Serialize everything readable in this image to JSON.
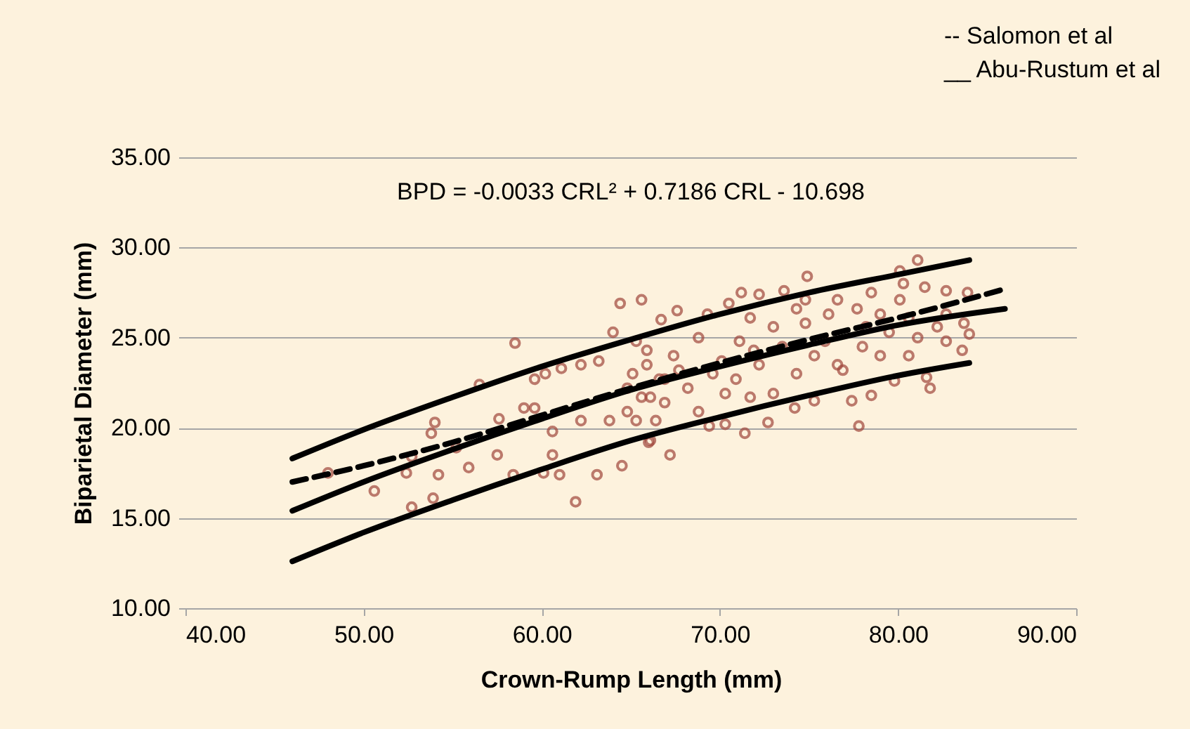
{
  "chart_data": {
    "type": "scatter",
    "xlabel": "Crown-Rump Length (mm)",
    "ylabel": "Biparietal Diameter (mm)",
    "annotations": [
      "BPD = -0.0033 CRL² + 0.7186 CRL - 10.698",
      "--   Salomon et al",
      "__ Abu-Rustum et al"
    ],
    "xlim": [
      40,
      90
    ],
    "xticks": [
      {
        "value": 40,
        "label": "40.00"
      },
      {
        "value": 50,
        "label": "50.00"
      },
      {
        "value": 60,
        "label": "60.00"
      },
      {
        "value": 70,
        "label": "70.00"
      },
      {
        "value": 80,
        "label": "80.00"
      },
      {
        "value": 90,
        "label": "90.00"
      }
    ],
    "ylim": [
      10,
      35
    ],
    "yticks": [
      {
        "value": 10,
        "label": "10.00"
      },
      {
        "value": 15,
        "label": "15.00"
      },
      {
        "value": 20,
        "label": "20.00"
      },
      {
        "value": 25,
        "label": "25.00"
      },
      {
        "value": 30,
        "label": "30.00"
      },
      {
        "value": 35,
        "label": "35.00"
      }
    ],
    "grid": "y",
    "series": [
      {
        "marker": "circle",
        "color": "#a0463c",
        "x": [
          50.6,
          52.7,
          53.9,
          52.4,
          54.2,
          55.9,
          54.0,
          53.8,
          52.7,
          58.5,
          56.5,
          55.2,
          57.5,
          57.6,
          59.0,
          59.6,
          59.6,
          60.2,
          58.4,
          60.1,
          61.0,
          61.9,
          63.1,
          64.5,
          64.4,
          65.6,
          61.1,
          62.2,
          63.2,
          64.0,
          60.6,
          62.2,
          63.8,
          65.3,
          66.1,
          67.2,
          60.6,
          64.8,
          66.1,
          66.9,
          65.9,
          65.3,
          66.7,
          74.9,
          81.1,
          80.1,
          77.8,
          81.8,
          83.6,
          84.0,
          83.9,
          82.7,
          81.5,
          80.3,
          78.5,
          76.6,
          74.8,
          73.6,
          72.2,
          71.2,
          67.6,
          69.3,
          70.5,
          66.0,
          69.4,
          70.3,
          71.4,
          72.7,
          74.2,
          75.3,
          77.4,
          78.5,
          79.8,
          80.6,
          81.6,
          82.7,
          82.2,
          79.5,
          78.0,
          76.6,
          75.3,
          73.5,
          72.2,
          70.9,
          69.6,
          68.2,
          66.9,
          65.6,
          64.8,
          67.4,
          68.8,
          71.1,
          73.0,
          74.8,
          76.1,
          77.7,
          79.0,
          80.6,
          82.7,
          83.7,
          81.1,
          79.0,
          76.9,
          74.3,
          73.0,
          71.7,
          70.3,
          68.8,
          66.4,
          67.7,
          70.1,
          71.9,
          75.9,
          80.1,
          78.2,
          74.3,
          71.7,
          65.9,
          65.1,
          66.6,
          48.0
        ],
        "values": [
          16.5,
          15.6,
          16.1,
          17.5,
          17.4,
          17.8,
          20.3,
          19.7,
          18.4,
          24.7,
          22.4,
          18.9,
          18.5,
          20.5,
          21.1,
          21.1,
          22.7,
          23.0,
          17.4,
          17.5,
          17.4,
          15.9,
          17.4,
          17.9,
          26.9,
          27.1,
          23.3,
          23.5,
          23.7,
          25.3,
          19.8,
          20.4,
          20.4,
          20.4,
          19.3,
          18.5,
          18.5,
          22.2,
          21.7,
          22.7,
          23.5,
          24.8,
          26.0,
          28.4,
          29.3,
          28.7,
          20.1,
          22.2,
          24.3,
          25.2,
          27.5,
          27.6,
          27.8,
          28.0,
          27.5,
          27.1,
          27.1,
          27.6,
          27.4,
          27.5,
          26.5,
          26.3,
          26.9,
          19.2,
          20.1,
          20.2,
          19.7,
          20.3,
          21.1,
          21.5,
          21.5,
          21.8,
          22.6,
          24.0,
          22.8,
          24.8,
          25.6,
          25.3,
          24.5,
          23.5,
          24.0,
          24.5,
          23.5,
          22.7,
          23.0,
          22.2,
          21.4,
          21.7,
          20.9,
          24.0,
          25.0,
          24.8,
          25.6,
          25.8,
          26.3,
          26.6,
          26.3,
          26.1,
          26.3,
          25.8,
          25.0,
          24.0,
          23.2,
          23.0,
          21.9,
          21.7,
          21.9,
          20.9,
          20.4,
          23.2,
          23.7,
          24.3,
          24.8,
          27.1,
          25.6,
          26.6,
          26.1,
          24.3,
          23.0,
          22.7,
          17.5
        ]
      },
      {
        "type": "line",
        "color": "#000000",
        "line_style": "solid",
        "marker": "none",
        "x": [
          46,
          50,
          55,
          60,
          65,
          70,
          75,
          80,
          84
        ],
        "values": [
          18.3,
          19.9,
          21.7,
          23.4,
          24.9,
          26.3,
          27.5,
          28.5,
          29.3
        ]
      },
      {
        "type": "line",
        "color": "#000000",
        "line_style": "solid",
        "marker": "none",
        "x": [
          46,
          50,
          55,
          60,
          65,
          70,
          75,
          80,
          86
        ],
        "values": [
          15.4,
          17.0,
          18.8,
          20.5,
          22.1,
          23.4,
          24.6,
          25.7,
          26.6
        ]
      },
      {
        "type": "line",
        "color": "#000000",
        "line_style": "solid",
        "marker": "none",
        "x": [
          46,
          50,
          55,
          60,
          65,
          70,
          75,
          80,
          84
        ],
        "values": [
          12.6,
          14.2,
          16.0,
          17.7,
          19.3,
          20.6,
          21.8,
          22.9,
          23.6
        ]
      },
      {
        "type": "line",
        "color": "#000000",
        "line_style": "dashed",
        "marker": "none",
        "x": [
          46,
          50,
          55,
          60,
          65,
          70,
          75,
          80,
          86
        ],
        "values": [
          17.0,
          17.9,
          19.2,
          20.7,
          22.2,
          23.6,
          24.9,
          26.1,
          27.7
        ]
      }
    ]
  }
}
